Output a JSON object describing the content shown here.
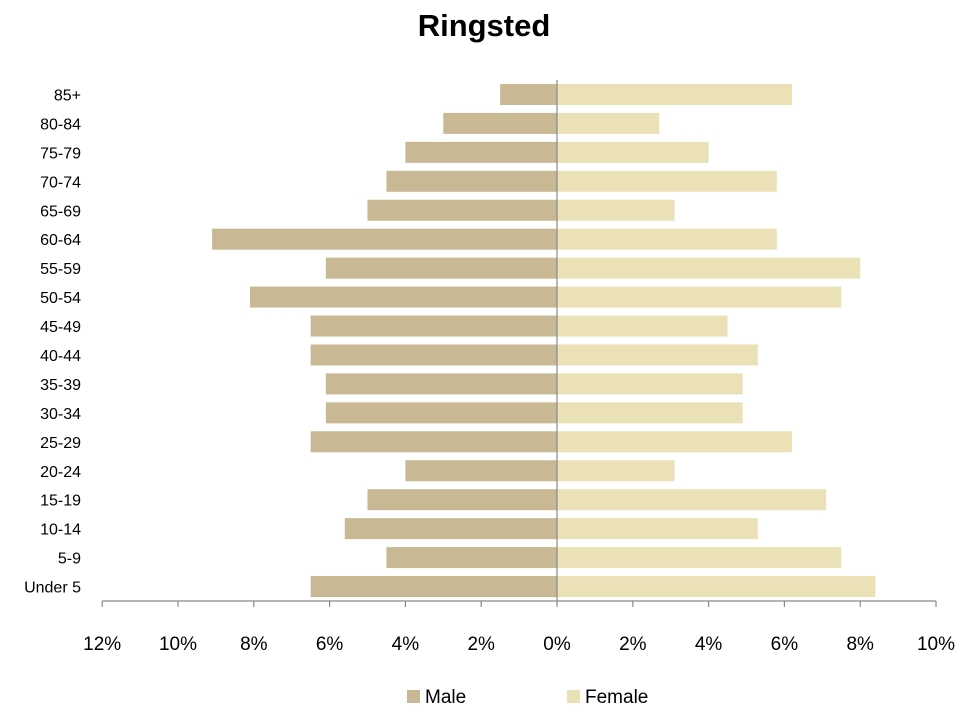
{
  "chart_data": {
    "type": "bar",
    "orientation": "horizontal",
    "title": "Ringsted",
    "categories": [
      "85+",
      "80-84",
      "75-79",
      "70-74",
      "65-69",
      "60-64",
      "55-59",
      "50-54",
      "45-49",
      "40-44",
      "35-39",
      "30-34",
      "25-29",
      "20-24",
      "15-19",
      "10-14",
      "5-9",
      "Under 5"
    ],
    "series": [
      {
        "name": "Male",
        "color": "#c8b994",
        "values": [
          1.5,
          3.0,
          4.0,
          4.5,
          5.0,
          9.1,
          6.1,
          8.1,
          6.5,
          6.5,
          6.1,
          6.1,
          6.5,
          4.0,
          5.0,
          5.6,
          4.5,
          6.5
        ]
      },
      {
        "name": "Female",
        "color": "#ebe1b6",
        "values": [
          6.2,
          2.7,
          4.0,
          5.8,
          3.1,
          5.8,
          8.0,
          7.5,
          4.5,
          5.3,
          4.9,
          4.9,
          6.2,
          3.1,
          7.1,
          5.3,
          7.5,
          8.4
        ]
      }
    ],
    "x_ticks": [
      "12%",
      "10%",
      "8%",
      "6%",
      "4%",
      "2%",
      "0%",
      "2%",
      "4%",
      "6%",
      "8%",
      "10%"
    ],
    "xlim": [
      -12,
      10
    ],
    "units": "%",
    "grid": false,
    "legend_position": "bottom"
  }
}
